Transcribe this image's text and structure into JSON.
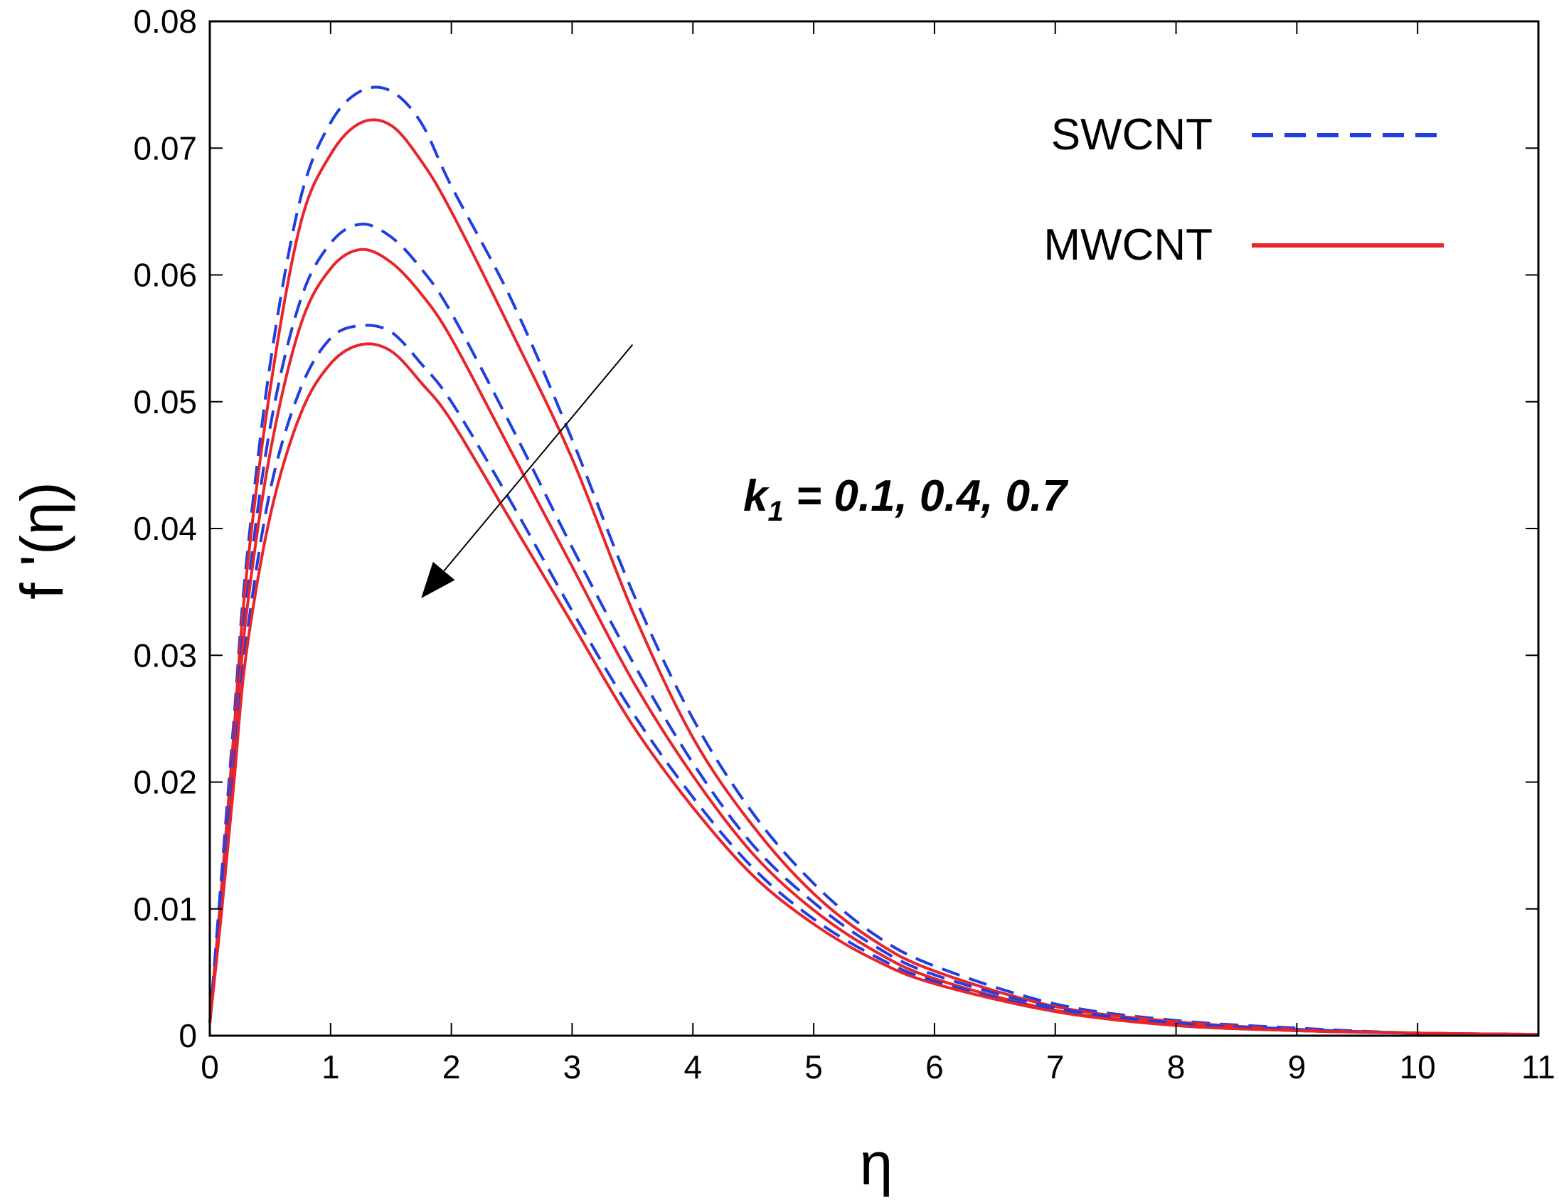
{
  "chart_data": {
    "type": "line",
    "title": "",
    "xlabel": "η",
    "ylabel": "f '(η)",
    "xlim": [
      0,
      11
    ],
    "ylim": [
      0,
      0.08
    ],
    "xticks": [
      0,
      1,
      2,
      3,
      4,
      5,
      6,
      7,
      8,
      9,
      10,
      11
    ],
    "yticks": [
      0,
      0.01,
      0.02,
      0.03,
      0.04,
      0.05,
      0.06,
      0.07,
      0.08
    ],
    "xtick_labels": [
      "0",
      "1",
      "2",
      "3",
      "4",
      "5",
      "6",
      "7",
      "8",
      "9",
      "10",
      "11"
    ],
    "ytick_labels": [
      "0",
      "0.01",
      "0.02",
      "0.03",
      "0.04",
      "0.05",
      "0.06",
      "0.07",
      "0.08"
    ],
    "grid": false,
    "legend_position": "top-right",
    "legend": [
      {
        "label": "SWCNT",
        "color": "#1f3fe0",
        "style": "dashed"
      },
      {
        "label": "MWCNT",
        "color": "#e8252b",
        "style": "solid"
      }
    ],
    "annotation": {
      "symbol": "k",
      "subscript": "1",
      "text": " = 0.1, 0.4, 0.7",
      "arrow_from": [
        3.5,
        0.0545
      ],
      "arrow_to": [
        1.75,
        0.0345
      ]
    },
    "series": [
      {
        "name": "SWCNT",
        "color": "#1f3fe0",
        "style": "dashed",
        "x": [
          0,
          0.1,
          0.2,
          0.3,
          0.5,
          0.75,
          1.0,
          1.25,
          1.5,
          1.75,
          2.0,
          2.5,
          3.0,
          3.5,
          4.0,
          4.5,
          5.0,
          5.5,
          6.0,
          7.0,
          8.0,
          9.0,
          10.0,
          11.0
        ],
        "y": [
          0.001,
          0.013,
          0.025,
          0.037,
          0.053,
          0.066,
          0.072,
          0.0745,
          0.0745,
          0.072,
          0.067,
          0.058,
          0.047,
          0.035,
          0.025,
          0.0175,
          0.012,
          0.008,
          0.0055,
          0.0025,
          0.0012,
          0.0006,
          0.0002,
          0.0001
        ]
      },
      {
        "name": "MWCNT",
        "color": "#e8252b",
        "style": "solid",
        "x": [
          0,
          0.1,
          0.2,
          0.3,
          0.5,
          0.75,
          1.0,
          1.25,
          1.5,
          1.75,
          2.0,
          2.5,
          3.0,
          3.5,
          4.0,
          4.5,
          5.0,
          5.5,
          6.0,
          7.0,
          8.0,
          9.0,
          10.0,
          11.0
        ],
        "y": [
          0.001,
          0.012,
          0.024,
          0.036,
          0.051,
          0.064,
          0.0695,
          0.072,
          0.0718,
          0.069,
          0.065,
          0.0555,
          0.0455,
          0.0335,
          0.0235,
          0.0165,
          0.0112,
          0.0075,
          0.0051,
          0.0023,
          0.0011,
          0.0005,
          0.0002,
          0.0001
        ]
      },
      {
        "name": "SWCNT",
        "color": "#1f3fe0",
        "style": "dashed",
        "x": [
          0,
          0.1,
          0.2,
          0.3,
          0.5,
          0.75,
          1.0,
          1.25,
          1.5,
          1.75,
          2.0,
          2.5,
          3.0,
          3.5,
          4.0,
          4.5,
          5.0,
          5.5,
          6.0,
          7.0,
          8.0,
          9.0,
          10.0,
          11.0
        ],
        "y": [
          0.001,
          0.012,
          0.023,
          0.034,
          0.048,
          0.058,
          0.0625,
          0.064,
          0.063,
          0.0605,
          0.057,
          0.048,
          0.0385,
          0.0295,
          0.0215,
          0.015,
          0.0105,
          0.0071,
          0.0048,
          0.0022,
          0.001,
          0.0005,
          0.0002,
          0.0001
        ]
      },
      {
        "name": "MWCNT",
        "color": "#e8252b",
        "style": "solid",
        "x": [
          0,
          0.1,
          0.2,
          0.3,
          0.5,
          0.75,
          1.0,
          1.25,
          1.5,
          1.75,
          2.0,
          2.5,
          3.0,
          3.5,
          4.0,
          4.5,
          5.0,
          5.5,
          6.0,
          7.0,
          8.0,
          9.0,
          10.0,
          11.0
        ],
        "y": [
          0.001,
          0.011,
          0.022,
          0.033,
          0.046,
          0.056,
          0.0605,
          0.062,
          0.061,
          0.0585,
          0.055,
          0.046,
          0.037,
          0.028,
          0.0205,
          0.0143,
          0.0099,
          0.0067,
          0.0045,
          0.002,
          0.0009,
          0.0004,
          0.0002,
          0.0001
        ]
      },
      {
        "name": "SWCNT",
        "color": "#1f3fe0",
        "style": "dashed",
        "x": [
          0,
          0.1,
          0.2,
          0.3,
          0.5,
          0.75,
          1.0,
          1.25,
          1.5,
          1.75,
          2.0,
          2.5,
          3.0,
          3.5,
          4.0,
          4.5,
          5.0,
          5.5,
          6.0,
          7.0,
          8.0,
          9.0,
          10.0,
          11.0
        ],
        "y": [
          0.001,
          0.011,
          0.021,
          0.031,
          0.043,
          0.051,
          0.055,
          0.056,
          0.0555,
          0.053,
          0.05,
          0.042,
          0.0335,
          0.0255,
          0.0188,
          0.0132,
          0.0092,
          0.0063,
          0.0043,
          0.002,
          0.0009,
          0.0004,
          0.0002,
          0.0001
        ]
      },
      {
        "name": "MWCNT",
        "color": "#e8252b",
        "style": "solid",
        "x": [
          0,
          0.1,
          0.2,
          0.3,
          0.5,
          0.75,
          1.0,
          1.25,
          1.5,
          1.75,
          2.0,
          2.5,
          3.0,
          3.5,
          4.0,
          4.5,
          5.0,
          5.5,
          6.0,
          7.0,
          8.0,
          9.0,
          10.0,
          11.0
        ],
        "y": [
          0.001,
          0.01,
          0.02,
          0.03,
          0.041,
          0.049,
          0.053,
          0.0545,
          0.054,
          0.0515,
          0.0485,
          0.0405,
          0.0325,
          0.0245,
          0.018,
          0.0126,
          0.0088,
          0.006,
          0.0041,
          0.0019,
          0.0008,
          0.0004,
          0.0002,
          0.0001
        ]
      }
    ]
  }
}
